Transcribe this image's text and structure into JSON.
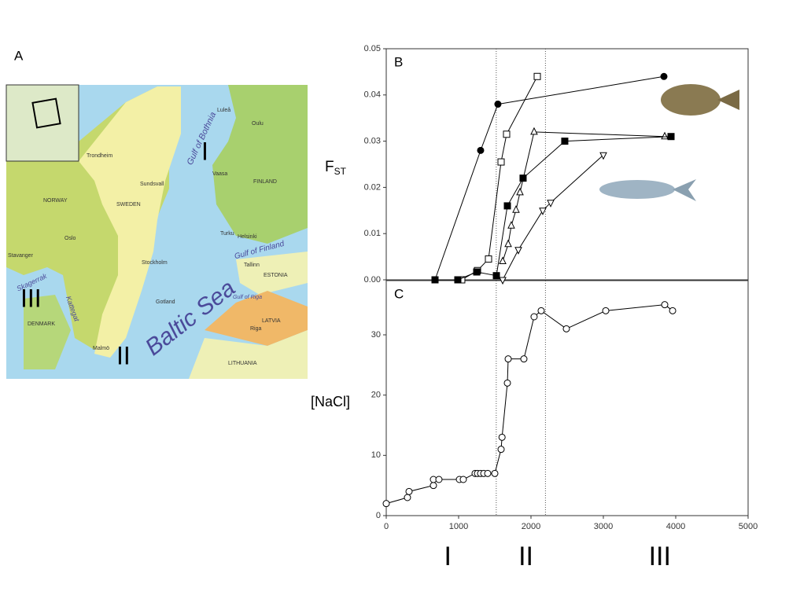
{
  "chart_data": [
    {
      "type": "line",
      "panel": "B",
      "ylabel": {
        "main": "F",
        "sub": "ST"
      },
      "xlim": [
        0,
        5000
      ],
      "ylim": [
        0,
        0.05
      ],
      "yticks": [
        {
          "value": 0,
          "label": "0.00"
        },
        {
          "value": 0.01,
          "label": "0.01"
        },
        {
          "value": 0.02,
          "label": "0.02"
        },
        {
          "value": 0.03,
          "label": "0.03"
        },
        {
          "value": 0.04,
          "label": "0.04"
        },
        {
          "value": 0.05,
          "label": "0.05"
        }
      ],
      "boundaries": [
        1520,
        2200
      ],
      "series": [
        {
          "marker": "circle-filled",
          "color": "#000000",
          "x": [
            674,
            1304,
            1543,
            3837
          ],
          "values": [
            0,
            0.028,
            0.038,
            0.044
          ]
        },
        {
          "marker": "square-open",
          "color": "#000000",
          "x": [
            1043,
            1261,
            1413,
            1587,
            1663,
            2087
          ],
          "values": [
            0,
            0.002,
            0.0045,
            0.0255,
            0.0315,
            0.044
          ]
        },
        {
          "marker": "triangle-up-open",
          "color": "#000000",
          "x": [
            1609,
            1685,
            1728,
            1793,
            1848,
            2043,
            3848
          ],
          "values": [
            0.004,
            0.0077,
            0.0117,
            0.0151,
            0.0189,
            0.032,
            0.031
          ]
        },
        {
          "marker": "square-filled",
          "color": "#000000",
          "x": [
            674,
            989,
            1250,
            1522,
            1674,
            1891,
            2467,
            3935
          ],
          "values": [
            0,
            0,
            0.0017,
            0.0009,
            0.016,
            0.022,
            0.03,
            0.031
          ]
        },
        {
          "marker": "triangle-down-open",
          "color": "#000000",
          "x": [
            1609,
            1826,
            2163,
            2272,
            3000
          ],
          "values": [
            0,
            0.0065,
            0.015,
            0.0167,
            0.027
          ]
        }
      ]
    },
    {
      "type": "line",
      "panel": "C",
      "ylabel": "[NaCl]",
      "xlim": [
        0,
        5000
      ],
      "ylim": [
        0,
        39
      ],
      "xticks": [
        0,
        1000,
        2000,
        3000,
        4000,
        5000
      ],
      "yticks": [
        0,
        10,
        20,
        30
      ],
      "boundaries": [
        1520,
        2200
      ],
      "regions": [
        {
          "label": "I",
          "x": 850
        },
        {
          "label": "II",
          "x": 1930
        },
        {
          "label": "III",
          "x": 3780
        }
      ],
      "series": [
        {
          "marker": "circle-open",
          "color": "#000000",
          "x": [
            0,
            293,
            315,
            652,
            652,
            728,
            1011,
            1065,
            1228,
            1261,
            1304,
            1348,
            1402,
            1500,
            1587,
            1600,
            1674,
            1685,
            1902,
            2043,
            2141,
            2489,
            3033,
            3848,
            3957
          ],
          "values": [
            2,
            3,
            4,
            5,
            6,
            6,
            6,
            6,
            7,
            7,
            7,
            7,
            7,
            7,
            11,
            13,
            22,
            26,
            26,
            33,
            34,
            31,
            34,
            35,
            34
          ]
        }
      ]
    }
  ],
  "map": {
    "panel": "A",
    "labels": [
      "NORWAY",
      "SWEDEN",
      "FINLAND",
      "ESTONIA",
      "LATVIA",
      "LITHUANIA",
      "DENMARK",
      "Baltic Sea",
      "Gulf of Bothnia",
      "Gulf of Finland",
      "Gulf of Riga",
      "Kattegat",
      "Skagerrak",
      "Oslo",
      "Stockholm",
      "Helsinki",
      "Tallinn",
      "Riga",
      "Turku",
      "Vaasa",
      "Luleå",
      "Oulu",
      "Sundsvall",
      "Trondheim",
      "Stavanger",
      "Malmö",
      "Gotland"
    ],
    "regions": [
      "I",
      "II",
      "III"
    ]
  }
}
